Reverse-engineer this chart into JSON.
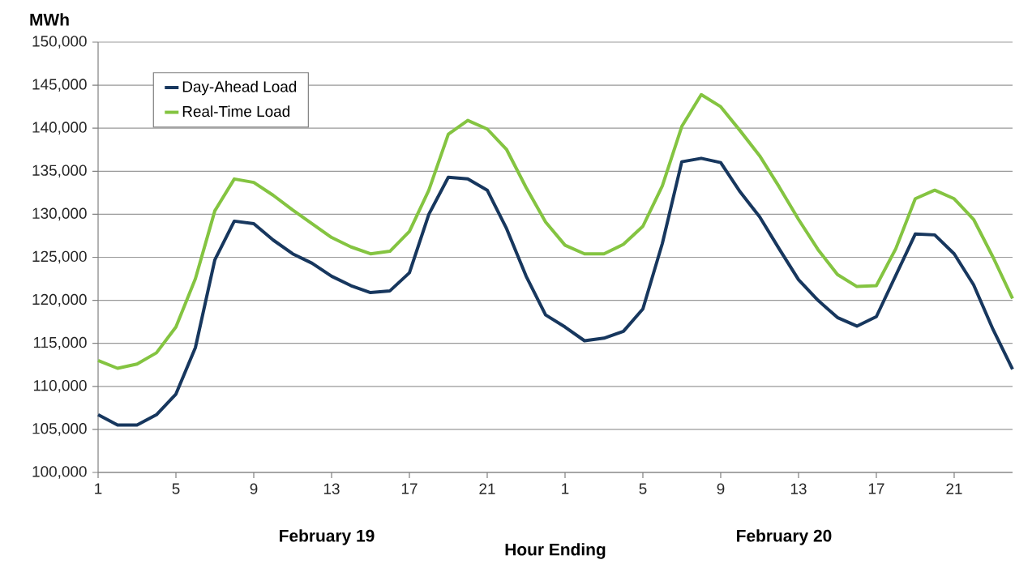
{
  "chart_data": {
    "type": "line",
    "ylabel": "MWh",
    "xlabel": "Hour Ending",
    "categories": [
      "1",
      null,
      null,
      null,
      "5",
      null,
      null,
      null,
      "9",
      null,
      null,
      null,
      "13",
      null,
      null,
      null,
      "17",
      null,
      null,
      null,
      "21",
      null,
      null,
      null,
      "1",
      null,
      null,
      null,
      "5",
      null,
      null,
      null,
      "9",
      null,
      null,
      null,
      "13",
      null,
      null,
      null,
      "17",
      null,
      null,
      null,
      "21",
      null,
      null,
      null
    ],
    "series": [
      {
        "name": "Day-Ahead Load",
        "color": "#17375e",
        "values": [
          106700,
          105500,
          105500,
          106700,
          109100,
          114500,
          124700,
          129200,
          128900,
          127000,
          125400,
          124300,
          122800,
          121700,
          120900,
          121100,
          123200,
          130000,
          134300,
          134100,
          132800,
          128300,
          122800,
          118300,
          116900,
          115300,
          115600,
          116400,
          119000,
          126600,
          136100,
          136500,
          136000,
          132600,
          129700,
          126000,
          122400,
          120000,
          118000,
          117000,
          118100,
          122900,
          127700,
          127600,
          125400,
          121800,
          116600,
          112000
        ]
      },
      {
        "name": "Real-Time Load",
        "color": "#84c441",
        "values": [
          113000,
          112100,
          112600,
          113900,
          116900,
          122500,
          130400,
          134100,
          133700,
          132200,
          130500,
          128900,
          127300,
          126200,
          125400,
          125700,
          128000,
          132800,
          139300,
          140900,
          139900,
          137500,
          133100,
          129100,
          126400,
          125400,
          125400,
          126500,
          128600,
          133300,
          140200,
          143900,
          142500,
          139700,
          136800,
          133200,
          129400,
          125900,
          123000,
          121600,
          121700,
          126000,
          131800,
          132800,
          131800,
          129400,
          125000,
          120200
        ]
      }
    ],
    "ylim": [
      100000,
      150000
    ],
    "yticks": [
      {
        "value": 100000,
        "label": "100,000"
      },
      {
        "value": 105000,
        "label": "105,000"
      },
      {
        "value": 110000,
        "label": "110,000"
      },
      {
        "value": 115000,
        "label": "115,000"
      },
      {
        "value": 120000,
        "label": "120,000"
      },
      {
        "value": 125000,
        "label": "125,000"
      },
      {
        "value": 130000,
        "label": "130,000"
      },
      {
        "value": 135000,
        "label": "135,000"
      },
      {
        "value": 140000,
        "label": "140,000"
      },
      {
        "value": 145000,
        "label": "145,000"
      },
      {
        "value": 150000,
        "label": "150,000"
      }
    ],
    "grid": "y",
    "legend": "top left",
    "marker": "none",
    "line_style": "solid",
    "annotations": [
      "February 19",
      "February 20"
    ]
  }
}
